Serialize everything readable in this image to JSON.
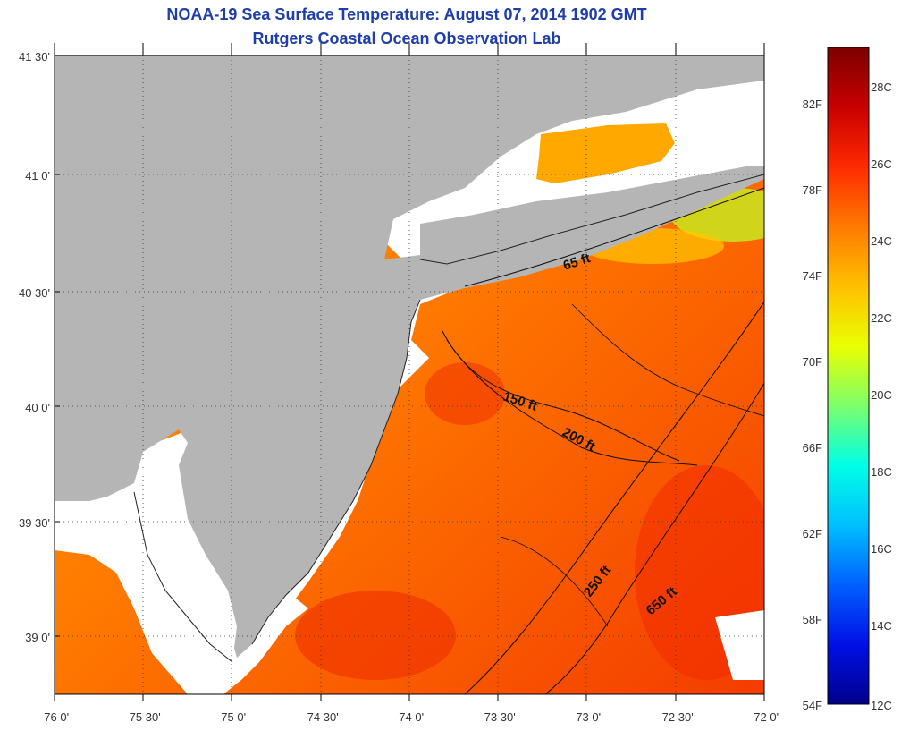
{
  "header": {
    "title": "NOAA-19 Sea Surface Temperature:  August 07, 2014 1902 GMT",
    "subtitle": "Rutgers Coastal Ocean Observation Lab"
  },
  "map": {
    "lat_labels": [
      "41 30'",
      "41 0'",
      "40 30'",
      "40 0'",
      "39 30'",
      "39 0'"
    ],
    "lon_labels": [
      "-76 0'",
      "-75 30'",
      "-75 0'",
      "-74 30'",
      "-74 0'",
      "-73 30'",
      "-73 0'",
      "-72 30'",
      "-72 0'"
    ],
    "depth_contours": [
      "65 ft",
      "150 ft",
      "200 ft",
      "250 ft",
      "650 ft"
    ],
    "colors": {
      "land": "#b5b5b5",
      "no_data": "#ffffff",
      "title": "#1f3fa8"
    }
  },
  "colorbar": {
    "fahrenheit_labels": [
      "82F",
      "78F",
      "74F",
      "70F",
      "66F",
      "62F",
      "58F",
      "54F"
    ],
    "celsius_labels": [
      "28C",
      "26C",
      "24C",
      "22C",
      "20C",
      "18C",
      "16C",
      "14C",
      "12C"
    ],
    "gradient_colors": [
      "#7d0000",
      "#c80000",
      "#ff2a00",
      "#ff7a00",
      "#ffc000",
      "#eaff00",
      "#7dff6a",
      "#00ffe6",
      "#00c0ff",
      "#0060ff",
      "#0010e6",
      "#00008c"
    ]
  }
}
